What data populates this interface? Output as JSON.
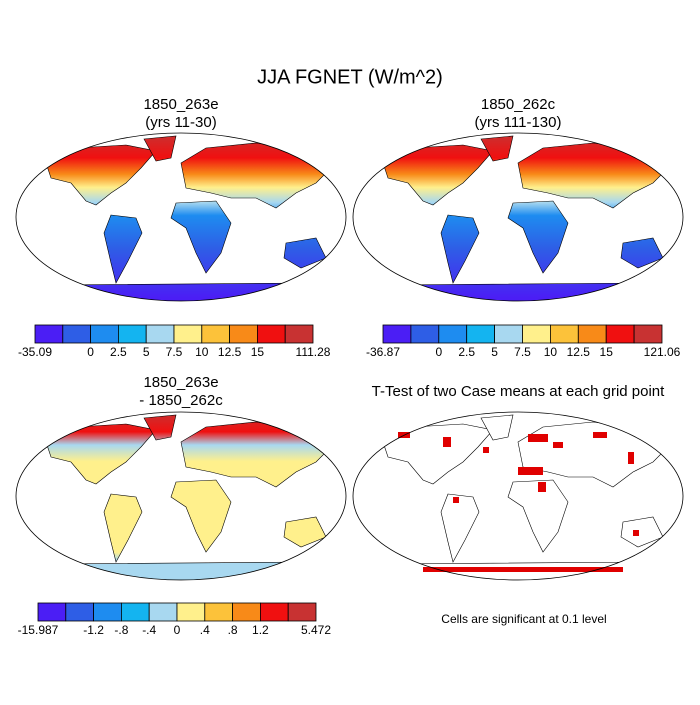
{
  "title": "JJA FGNET (W/m^2)",
  "panels": [
    {
      "title_lines": [
        "1850_263e",
        "(yrs 11-30)"
      ],
      "colorbar": {
        "colors": [
          "#4b1ef5",
          "#2e5ee6",
          "#1e8cf0",
          "#14b4f0",
          "#a8d8f0",
          "#fff08c",
          "#fcc23a",
          "#f88a18",
          "#f01010",
          "#c83232"
        ],
        "labels": [
          "-35.09",
          null,
          "0",
          "2.5",
          "5",
          "7.5",
          "10",
          "12.5",
          "15",
          null,
          "111.28"
        ]
      }
    },
    {
      "title_lines": [
        "1850_262c",
        "(yrs 111-130)"
      ],
      "colorbar": {
        "colors": [
          "#4b1ef5",
          "#2e5ee6",
          "#1e8cf0",
          "#14b4f0",
          "#a8d8f0",
          "#fff08c",
          "#fcc23a",
          "#f88a18",
          "#f01010",
          "#c83232"
        ],
        "labels": [
          "-36.87",
          null,
          "0",
          "2.5",
          "5",
          "7.5",
          "10",
          "12.5",
          "15",
          null,
          "121.06"
        ]
      }
    },
    {
      "title_lines": [
        "1850_263e",
        "- 1850_262c"
      ],
      "colorbar": {
        "colors": [
          "#4b1ef5",
          "#2e5ee6",
          "#1e8cf0",
          "#14b4f0",
          "#a8d8f0",
          "#fff08c",
          "#fcc23a",
          "#f88a18",
          "#f01010",
          "#c83232"
        ],
        "labels": [
          "-15.987",
          null,
          "-1.2",
          "-.8",
          "-.4",
          "0",
          ".4",
          ".8",
          "1.2",
          null,
          "5.472"
        ]
      }
    },
    {
      "title_lines": [
        "T-Test of two Case means at each grid point"
      ],
      "note": "Cells are significant at 0.1 level"
    }
  ]
}
